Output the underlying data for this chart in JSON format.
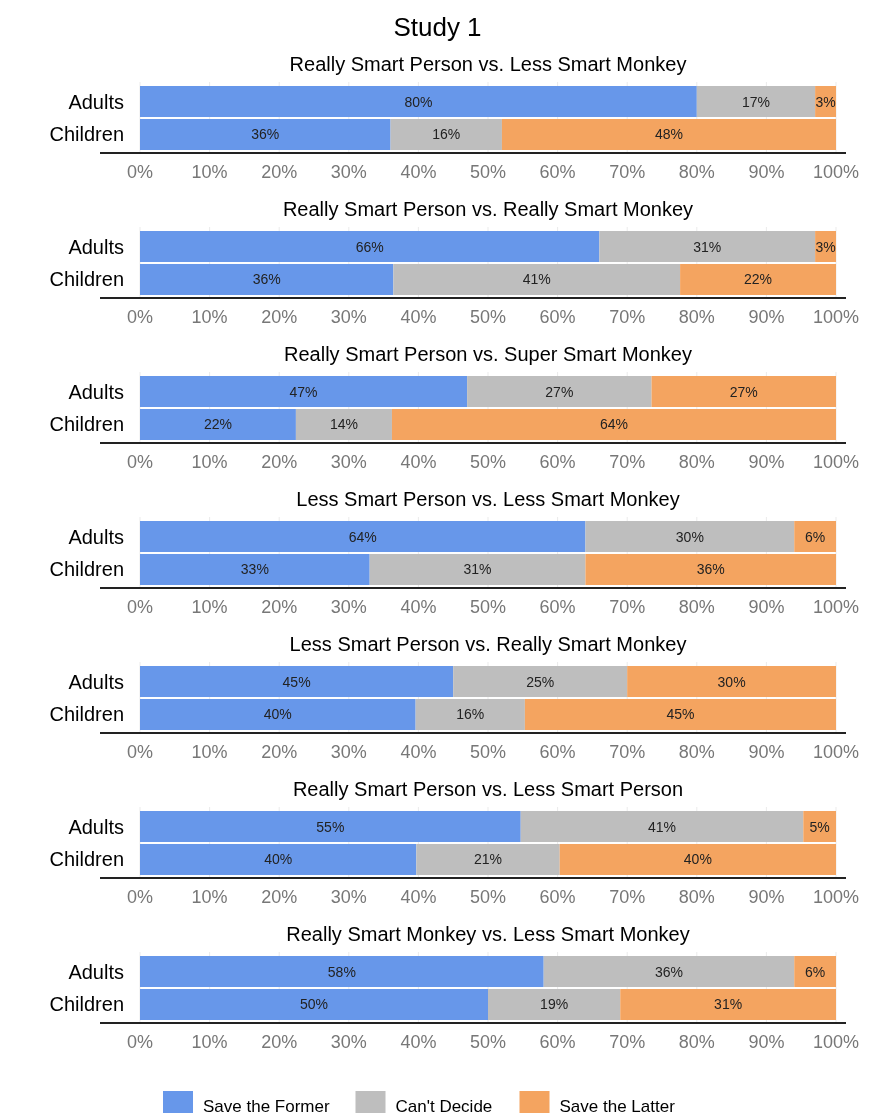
{
  "chart_data": [
    {
      "type": "bar",
      "orientation": "horizontal",
      "stacked": true,
      "title": "Study 1",
      "subtitle": "Really Smart Person vs. Less Smart Monkey",
      "categories": [
        "Adults",
        "Children"
      ],
      "xlim": [
        0,
        100
      ],
      "xticks": [
        {
          "value": 0,
          "label": "0%"
        },
        {
          "value": 10,
          "label": "10%"
        },
        {
          "value": 20,
          "label": "20%"
        },
        {
          "value": 30,
          "label": "30%"
        },
        {
          "value": 40,
          "label": "40%"
        },
        {
          "value": 50,
          "label": "50%"
        },
        {
          "value": 60,
          "label": "60%"
        },
        {
          "value": 70,
          "label": "70%"
        },
        {
          "value": 80,
          "label": "80%"
        },
        {
          "value": 90,
          "label": "90%"
        },
        {
          "value": 100,
          "label": "100%"
        }
      ],
      "grid": "x",
      "legend": false,
      "series": [
        {
          "color": "#6797ea",
          "values": [
            80,
            36
          ],
          "value_labels": [
            "80%",
            "36%"
          ]
        },
        {
          "color": "#bebebe",
          "values": [
            17,
            16
          ],
          "value_labels": [
            "17%",
            "16%"
          ]
        },
        {
          "color": "#f4a460",
          "values": [
            3,
            48
          ],
          "value_labels": [
            "3%",
            "48%"
          ]
        }
      ]
    },
    {
      "type": "bar",
      "orientation": "horizontal",
      "stacked": true,
      "title": "Really Smart Person vs. Really Smart Monkey",
      "categories": [
        "Adults",
        "Children"
      ],
      "xlim": [
        0,
        100
      ],
      "xticks": [
        {
          "value": 0,
          "label": "0%"
        },
        {
          "value": 10,
          "label": "10%"
        },
        {
          "value": 20,
          "label": "20%"
        },
        {
          "value": 30,
          "label": "30%"
        },
        {
          "value": 40,
          "label": "40%"
        },
        {
          "value": 50,
          "label": "50%"
        },
        {
          "value": 60,
          "label": "60%"
        },
        {
          "value": 70,
          "label": "70%"
        },
        {
          "value": 80,
          "label": "80%"
        },
        {
          "value": 90,
          "label": "90%"
        },
        {
          "value": 100,
          "label": "100%"
        }
      ],
      "grid": "x",
      "legend": false,
      "series": [
        {
          "color": "#6797ea",
          "values": [
            66,
            36.4
          ],
          "value_labels": [
            "66%",
            "36%"
          ]
        },
        {
          "color": "#bebebe",
          "values": [
            31,
            41.2
          ],
          "value_labels": [
            "31%",
            "41%"
          ]
        },
        {
          "color": "#f4a460",
          "values": [
            3,
            22.4
          ],
          "value_labels": [
            "3%",
            "22%"
          ]
        }
      ]
    },
    {
      "type": "bar",
      "orientation": "horizontal",
      "stacked": true,
      "title": "Really Smart Person vs. Super Smart Monkey",
      "categories": [
        "Adults",
        "Children"
      ],
      "xlim": [
        0,
        100
      ],
      "xticks": [
        {
          "value": 0,
          "label": "0%"
        },
        {
          "value": 10,
          "label": "10%"
        },
        {
          "value": 20,
          "label": "20%"
        },
        {
          "value": 30,
          "label": "30%"
        },
        {
          "value": 40,
          "label": "40%"
        },
        {
          "value": 50,
          "label": "50%"
        },
        {
          "value": 60,
          "label": "60%"
        },
        {
          "value": 70,
          "label": "70%"
        },
        {
          "value": 80,
          "label": "80%"
        },
        {
          "value": 90,
          "label": "90%"
        },
        {
          "value": 100,
          "label": "100%"
        }
      ],
      "grid": "x",
      "legend": false,
      "series": [
        {
          "color": "#6797ea",
          "values": [
            47,
            22.4
          ],
          "value_labels": [
            "47%",
            "22%"
          ]
        },
        {
          "color": "#bebebe",
          "values": [
            26.5,
            13.8
          ],
          "value_labels": [
            "27%",
            "14%"
          ]
        },
        {
          "color": "#f4a460",
          "values": [
            26.5,
            63.8
          ],
          "value_labels": [
            "27%",
            "64%"
          ]
        }
      ]
    },
    {
      "type": "bar",
      "orientation": "horizontal",
      "stacked": true,
      "title": "Less Smart Person vs. Less Smart Monkey",
      "categories": [
        "Adults",
        "Children"
      ],
      "xlim": [
        0,
        100
      ],
      "xticks": [
        {
          "value": 0,
          "label": "0%"
        },
        {
          "value": 10,
          "label": "10%"
        },
        {
          "value": 20,
          "label": "20%"
        },
        {
          "value": 30,
          "label": "30%"
        },
        {
          "value": 40,
          "label": "40%"
        },
        {
          "value": 50,
          "label": "50%"
        },
        {
          "value": 60,
          "label": "60%"
        },
        {
          "value": 70,
          "label": "70%"
        },
        {
          "value": 80,
          "label": "80%"
        },
        {
          "value": 90,
          "label": "90%"
        },
        {
          "value": 100,
          "label": "100%"
        }
      ],
      "grid": "x",
      "legend": false,
      "series": [
        {
          "color": "#6797ea",
          "values": [
            64,
            33
          ],
          "value_labels": [
            "64%",
            "33%"
          ]
        },
        {
          "color": "#bebebe",
          "values": [
            30,
            31
          ],
          "value_labels": [
            "30%",
            "31%"
          ]
        },
        {
          "color": "#f4a460",
          "values": [
            6,
            36
          ],
          "value_labels": [
            "6%",
            "36%"
          ]
        }
      ]
    },
    {
      "type": "bar",
      "orientation": "horizontal",
      "stacked": true,
      "title": "Less Smart Person vs. Really Smart Monkey",
      "categories": [
        "Adults",
        "Children"
      ],
      "xlim": [
        0,
        100
      ],
      "xticks": [
        {
          "value": 0,
          "label": "0%"
        },
        {
          "value": 10,
          "label": "10%"
        },
        {
          "value": 20,
          "label": "20%"
        },
        {
          "value": 30,
          "label": "30%"
        },
        {
          "value": 40,
          "label": "40%"
        },
        {
          "value": 50,
          "label": "50%"
        },
        {
          "value": 60,
          "label": "60%"
        },
        {
          "value": 70,
          "label": "70%"
        },
        {
          "value": 80,
          "label": "80%"
        },
        {
          "value": 90,
          "label": "90%"
        },
        {
          "value": 100,
          "label": "100%"
        }
      ],
      "grid": "x",
      "legend": false,
      "series": [
        {
          "color": "#6797ea",
          "values": [
            45,
            39.6
          ],
          "value_labels": [
            "45%",
            "40%"
          ]
        },
        {
          "color": "#bebebe",
          "values": [
            25,
            15.7
          ],
          "value_labels": [
            "25%",
            "16%"
          ]
        },
        {
          "color": "#f4a460",
          "values": [
            30,
            44.7
          ],
          "value_labels": [
            "30%",
            "45%"
          ]
        }
      ]
    },
    {
      "type": "bar",
      "orientation": "horizontal",
      "stacked": true,
      "title": "Really Smart Person vs. Less Smart Person",
      "categories": [
        "Adults",
        "Children"
      ],
      "xlim": [
        0,
        100
      ],
      "xticks": [
        {
          "value": 0,
          "label": "0%"
        },
        {
          "value": 10,
          "label": "10%"
        },
        {
          "value": 20,
          "label": "20%"
        },
        {
          "value": 30,
          "label": "30%"
        },
        {
          "value": 40,
          "label": "40%"
        },
        {
          "value": 50,
          "label": "50%"
        },
        {
          "value": 60,
          "label": "60%"
        },
        {
          "value": 70,
          "label": "70%"
        },
        {
          "value": 80,
          "label": "80%"
        },
        {
          "value": 90,
          "label": "90%"
        },
        {
          "value": 100,
          "label": "100%"
        }
      ],
      "grid": "x",
      "legend": false,
      "series": [
        {
          "color": "#6797ea",
          "values": [
            54.7,
            39.7
          ],
          "value_labels": [
            "55%",
            "40%"
          ]
        },
        {
          "color": "#bebebe",
          "values": [
            40.6,
            20.6
          ],
          "value_labels": [
            "41%",
            "21%"
          ]
        },
        {
          "color": "#f4a460",
          "values": [
            4.7,
            39.7
          ],
          "value_labels": [
            "5%",
            "40%"
          ]
        }
      ]
    },
    {
      "type": "bar",
      "orientation": "horizontal",
      "stacked": true,
      "title": "Really Smart Monkey vs. Less Smart Monkey",
      "categories": [
        "Adults",
        "Children"
      ],
      "xlim": [
        0,
        100
      ],
      "xticks": [
        {
          "value": 0,
          "label": "0%"
        },
        {
          "value": 10,
          "label": "10%"
        },
        {
          "value": 20,
          "label": "20%"
        },
        {
          "value": 30,
          "label": "30%"
        },
        {
          "value": 40,
          "label": "40%"
        },
        {
          "value": 50,
          "label": "50%"
        },
        {
          "value": 60,
          "label": "60%"
        },
        {
          "value": 70,
          "label": "70%"
        },
        {
          "value": 80,
          "label": "80%"
        },
        {
          "value": 90,
          "label": "90%"
        },
        {
          "value": 100,
          "label": "100%"
        }
      ],
      "grid": "x",
      "legend": "bottom",
      "series": [
        {
          "name": "Save the Former",
          "color": "#6797ea",
          "values": [
            58,
            50
          ],
          "value_labels": [
            "58%",
            "50%"
          ]
        },
        {
          "name": "Can't Decide",
          "color": "#bebebe",
          "values": [
            36,
            19
          ],
          "value_labels": [
            "36%",
            "19%"
          ]
        },
        {
          "name": "Save the Latter",
          "color": "#f4a460",
          "values": [
            6,
            31
          ],
          "value_labels": [
            "6%",
            "31%"
          ]
        }
      ]
    }
  ]
}
